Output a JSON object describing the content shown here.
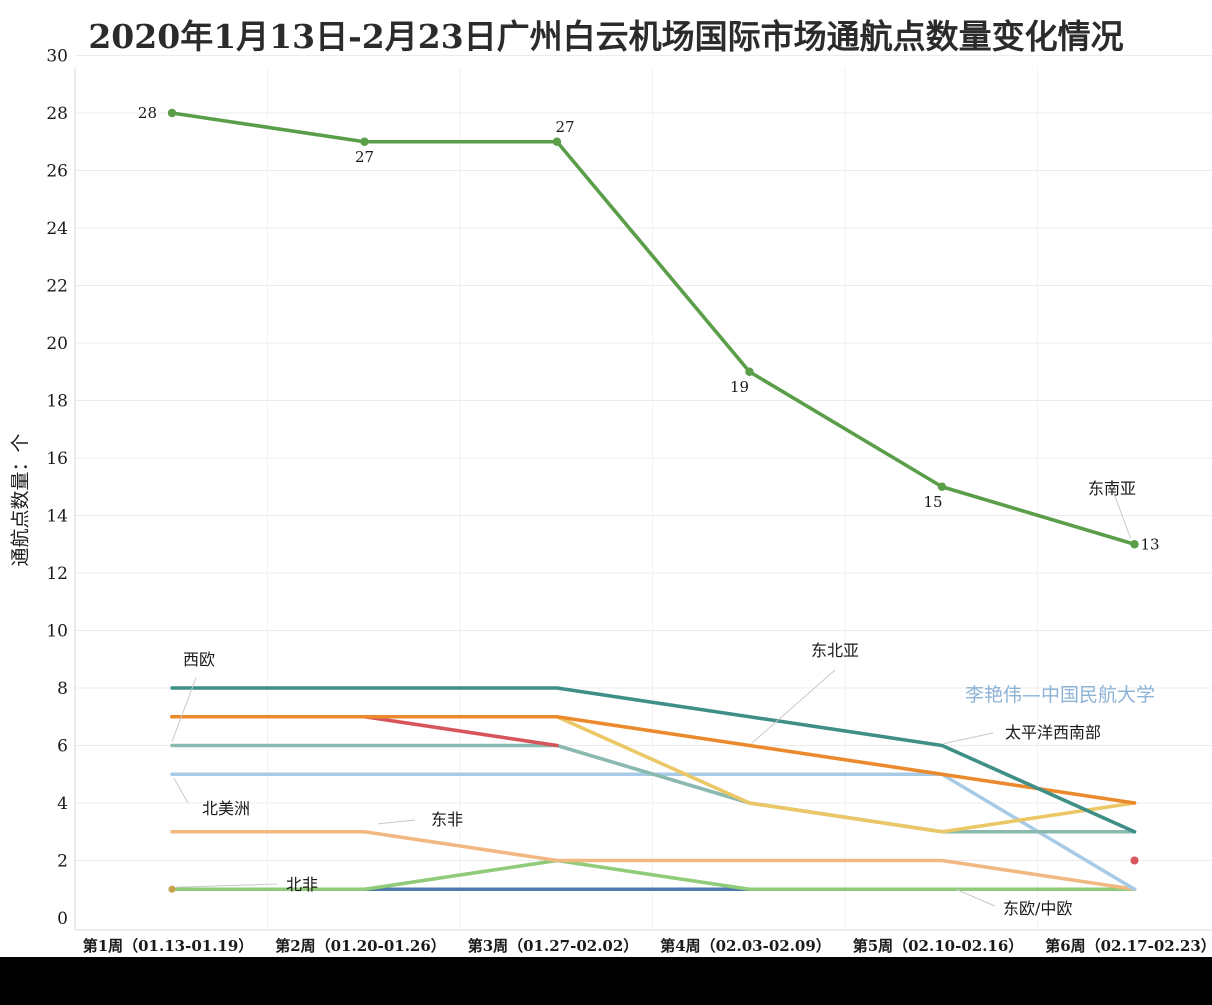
{
  "chart_data": {
    "type": "line",
    "title": "2020年1月13日-2月23日广州白云机场国际市场通航点数量变化情况",
    "ylabel": "通航点数量：个",
    "xlabel": "",
    "ylim": [
      0,
      30
    ],
    "yticks": [
      0,
      2,
      4,
      6,
      8,
      10,
      12,
      14,
      16,
      18,
      20,
      22,
      24,
      26,
      28,
      30
    ],
    "grid": true,
    "categories": [
      "第1周（01.13-01.19）",
      "第2周（01.20-01.26）",
      "第3周（01.27-02.02）",
      "第4周（02.03-02.09）",
      "第5周（02.10-02.16）",
      "第6周（02.17-02.23）"
    ],
    "series": [
      {
        "name": "东南亚",
        "color": "#5a9e4a",
        "values": [
          28,
          27,
          27,
          19,
          15,
          13
        ],
        "markers": true,
        "data_labels": true
      },
      {
        "name": "太平洋西南部",
        "color": "#3f8f86",
        "values": [
          8,
          8,
          8,
          7,
          6,
          3
        ]
      },
      {
        "name": "东北亚",
        "color": "#ea8a2c",
        "values": [
          7,
          7,
          7,
          6,
          5,
          4
        ]
      },
      {
        "name": "",
        "color": "#d6555a",
        "values": [
          7,
          7,
          6,
          null,
          null,
          2
        ]
      },
      {
        "name": "",
        "color": "#ebc766",
        "values": [
          7,
          7,
          7,
          4,
          3,
          4
        ]
      },
      {
        "name": "西欧",
        "color": "#8ab9b0",
        "values": [
          6,
          6,
          6,
          4,
          3,
          3
        ]
      },
      {
        "name": "北美洲",
        "color": "#a7cbe6",
        "values": [
          5,
          5,
          5,
          5,
          5,
          1
        ]
      },
      {
        "name": "东非",
        "color": "#f2b882",
        "values": [
          3,
          3,
          2,
          2,
          2,
          1
        ]
      },
      {
        "name": "东欧/中欧",
        "color": "#8fcb78",
        "values": [
          1,
          1,
          2,
          1,
          1,
          1
        ]
      },
      {
        "name": "北非",
        "color": "#4d79ad",
        "values": [
          1,
          1,
          1,
          1,
          null,
          null
        ]
      }
    ]
  },
  "watermark": "李艳伟—中国民航大学"
}
